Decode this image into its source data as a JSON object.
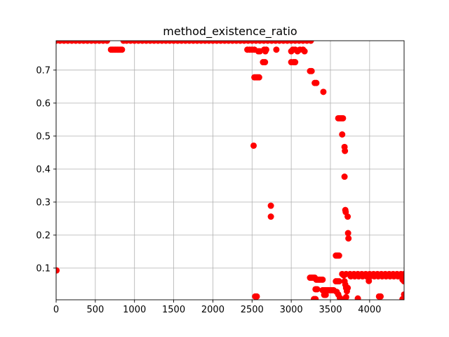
{
  "chart_data": {
    "type": "scatter",
    "title": "method_existence_ratio",
    "xlabel": "",
    "ylabel": "",
    "xlim": [
      0,
      4440
    ],
    "ylim": [
      0.004,
      0.789
    ],
    "xticks": [
      0,
      500,
      1000,
      1500,
      2000,
      2500,
      3000,
      3500,
      4000
    ],
    "yticks": [
      0.1,
      0.2,
      0.3,
      0.4,
      0.5,
      0.6,
      0.7
    ],
    "grid": true,
    "legend": "none",
    "marker_color": "#ff0000",
    "series": [
      {
        "values": [
          [
            5,
            0.093
          ],
          [
            0,
            0.789
          ],
          [
            50,
            0.789
          ],
          [
            100,
            0.789
          ],
          [
            150,
            0.789
          ],
          [
            200,
            0.789
          ],
          [
            250,
            0.789
          ],
          [
            300,
            0.789
          ],
          [
            350,
            0.789
          ],
          [
            400,
            0.789
          ],
          [
            450,
            0.789
          ],
          [
            500,
            0.789
          ],
          [
            550,
            0.789
          ],
          [
            600,
            0.789
          ],
          [
            650,
            0.789
          ],
          [
            700,
            0.762
          ],
          [
            720,
            0.762
          ],
          [
            740,
            0.762
          ],
          [
            760,
            0.762
          ],
          [
            780,
            0.762
          ],
          [
            800,
            0.762
          ],
          [
            820,
            0.762
          ],
          [
            840,
            0.762
          ],
          [
            860,
            0.789
          ],
          [
            900,
            0.789
          ],
          [
            950,
            0.789
          ],
          [
            1000,
            0.789
          ],
          [
            1050,
            0.789
          ],
          [
            1100,
            0.789
          ],
          [
            1150,
            0.789
          ],
          [
            1200,
            0.789
          ],
          [
            1250,
            0.789
          ],
          [
            1300,
            0.789
          ],
          [
            1350,
            0.789
          ],
          [
            1400,
            0.789
          ],
          [
            1450,
            0.789
          ],
          [
            1500,
            0.789
          ],
          [
            1550,
            0.789
          ],
          [
            1600,
            0.789
          ],
          [
            1650,
            0.789
          ],
          [
            1700,
            0.789
          ],
          [
            1750,
            0.789
          ],
          [
            1800,
            0.789
          ],
          [
            1850,
            0.789
          ],
          [
            1900,
            0.789
          ],
          [
            1950,
            0.789
          ],
          [
            2000,
            0.789
          ],
          [
            2050,
            0.789
          ],
          [
            2100,
            0.789
          ],
          [
            2150,
            0.789
          ],
          [
            2200,
            0.789
          ],
          [
            2250,
            0.789
          ],
          [
            2300,
            0.789
          ],
          [
            2350,
            0.789
          ],
          [
            2400,
            0.789
          ],
          [
            2450,
            0.789
          ],
          [
            2500,
            0.789
          ],
          [
            2550,
            0.789
          ],
          [
            2600,
            0.789
          ],
          [
            2650,
            0.789
          ],
          [
            2700,
            0.789
          ],
          [
            2750,
            0.789
          ],
          [
            2800,
            0.789
          ],
          [
            2850,
            0.789
          ],
          [
            2900,
            0.789
          ],
          [
            2950,
            0.789
          ],
          [
            3000,
            0.789
          ],
          [
            3050,
            0.789
          ],
          [
            3100,
            0.789
          ],
          [
            3150,
            0.789
          ],
          [
            3200,
            0.789
          ],
          [
            3250,
            0.789
          ],
          [
            2440,
            0.762
          ],
          [
            2470,
            0.762
          ],
          [
            2500,
            0.762
          ],
          [
            2530,
            0.762
          ],
          [
            2580,
            0.757
          ],
          [
            2600,
            0.757
          ],
          [
            2655,
            0.762
          ],
          [
            2670,
            0.757
          ],
          [
            2680,
            0.762
          ],
          [
            2810,
            0.762
          ],
          [
            3000,
            0.757
          ],
          [
            3020,
            0.762
          ],
          [
            3050,
            0.762
          ],
          [
            3080,
            0.757
          ],
          [
            3110,
            0.762
          ],
          [
            3150,
            0.762
          ],
          [
            3170,
            0.757
          ],
          [
            2530,
            0.678
          ],
          [
            2550,
            0.678
          ],
          [
            2570,
            0.678
          ],
          [
            2590,
            0.678
          ],
          [
            2640,
            0.724
          ],
          [
            2665,
            0.724
          ],
          [
            3000,
            0.724
          ],
          [
            3030,
            0.724
          ],
          [
            3050,
            0.724
          ],
          [
            3240,
            0.697
          ],
          [
            3260,
            0.697
          ],
          [
            3300,
            0.661
          ],
          [
            3320,
            0.661
          ],
          [
            3410,
            0.634
          ],
          [
            3600,
            0.554
          ],
          [
            3620,
            0.554
          ],
          [
            3640,
            0.554
          ],
          [
            3660,
            0.554
          ],
          [
            3650,
            0.505
          ],
          [
            3680,
            0.467
          ],
          [
            3685,
            0.455
          ],
          [
            3680,
            0.377
          ],
          [
            3690,
            0.276
          ],
          [
            3695,
            0.27
          ],
          [
            3720,
            0.256
          ],
          [
            3725,
            0.206
          ],
          [
            3730,
            0.19
          ],
          [
            2520,
            0.471
          ],
          [
            2740,
            0.289
          ],
          [
            2740,
            0.256
          ],
          [
            2540,
            0.014
          ],
          [
            2560,
            0.014
          ],
          [
            3240,
            0.071
          ],
          [
            3260,
            0.071
          ],
          [
            3280,
            0.071
          ],
          [
            3300,
            0.071
          ],
          [
            3320,
            0.065
          ],
          [
            3340,
            0.065
          ],
          [
            3360,
            0.065
          ],
          [
            3380,
            0.065
          ],
          [
            3400,
            0.065
          ],
          [
            3310,
            0.036
          ],
          [
            3330,
            0.036
          ],
          [
            3400,
            0.033
          ],
          [
            3420,
            0.033
          ],
          [
            3440,
            0.033
          ],
          [
            3460,
            0.033
          ],
          [
            3480,
            0.033
          ],
          [
            3500,
            0.033
          ],
          [
            3520,
            0.033
          ],
          [
            3540,
            0.033
          ],
          [
            3290,
            0.006
          ],
          [
            3310,
            0.006
          ],
          [
            3420,
            0.019
          ],
          [
            3440,
            0.019
          ],
          [
            3570,
            0.138
          ],
          [
            3590,
            0.138
          ],
          [
            3610,
            0.138
          ],
          [
            3570,
            0.06
          ],
          [
            3590,
            0.06
          ],
          [
            3610,
            0.06
          ],
          [
            3580,
            0.028
          ],
          [
            3600,
            0.02
          ],
          [
            3620,
            0.01
          ],
          [
            3640,
            0.005
          ],
          [
            3660,
            0.004
          ],
          [
            3680,
            0.006
          ],
          [
            3700,
            0.012
          ],
          [
            3650,
            0.082
          ],
          [
            3670,
            0.078
          ],
          [
            3680,
            0.06
          ],
          [
            3690,
            0.05
          ],
          [
            3700,
            0.04
          ],
          [
            3710,
            0.03
          ],
          [
            3720,
            0.04
          ],
          [
            3700,
            0.082
          ],
          [
            3750,
            0.082
          ],
          [
            3800,
            0.082
          ],
          [
            3850,
            0.082
          ],
          [
            3900,
            0.082
          ],
          [
            3950,
            0.082
          ],
          [
            4000,
            0.082
          ],
          [
            4050,
            0.082
          ],
          [
            4100,
            0.082
          ],
          [
            4150,
            0.082
          ],
          [
            4200,
            0.082
          ],
          [
            4250,
            0.082
          ],
          [
            4300,
            0.082
          ],
          [
            4350,
            0.082
          ],
          [
            4400,
            0.082
          ],
          [
            4440,
            0.082
          ],
          [
            3760,
            0.075
          ],
          [
            3810,
            0.075
          ],
          [
            3860,
            0.075
          ],
          [
            3910,
            0.075
          ],
          [
            3960,
            0.075
          ],
          [
            4010,
            0.075
          ],
          [
            4060,
            0.075
          ],
          [
            4110,
            0.075
          ],
          [
            4160,
            0.075
          ],
          [
            4210,
            0.075
          ],
          [
            4260,
            0.075
          ],
          [
            4310,
            0.075
          ],
          [
            4360,
            0.075
          ],
          [
            4410,
            0.075
          ],
          [
            3990,
            0.061
          ],
          [
            4420,
            0.065
          ],
          [
            4440,
            0.06
          ],
          [
            3850,
            0.008
          ],
          [
            4120,
            0.014
          ],
          [
            4140,
            0.014
          ],
          [
            4420,
            0.006
          ],
          [
            4440,
            0.02
          ]
        ]
      }
    ]
  }
}
